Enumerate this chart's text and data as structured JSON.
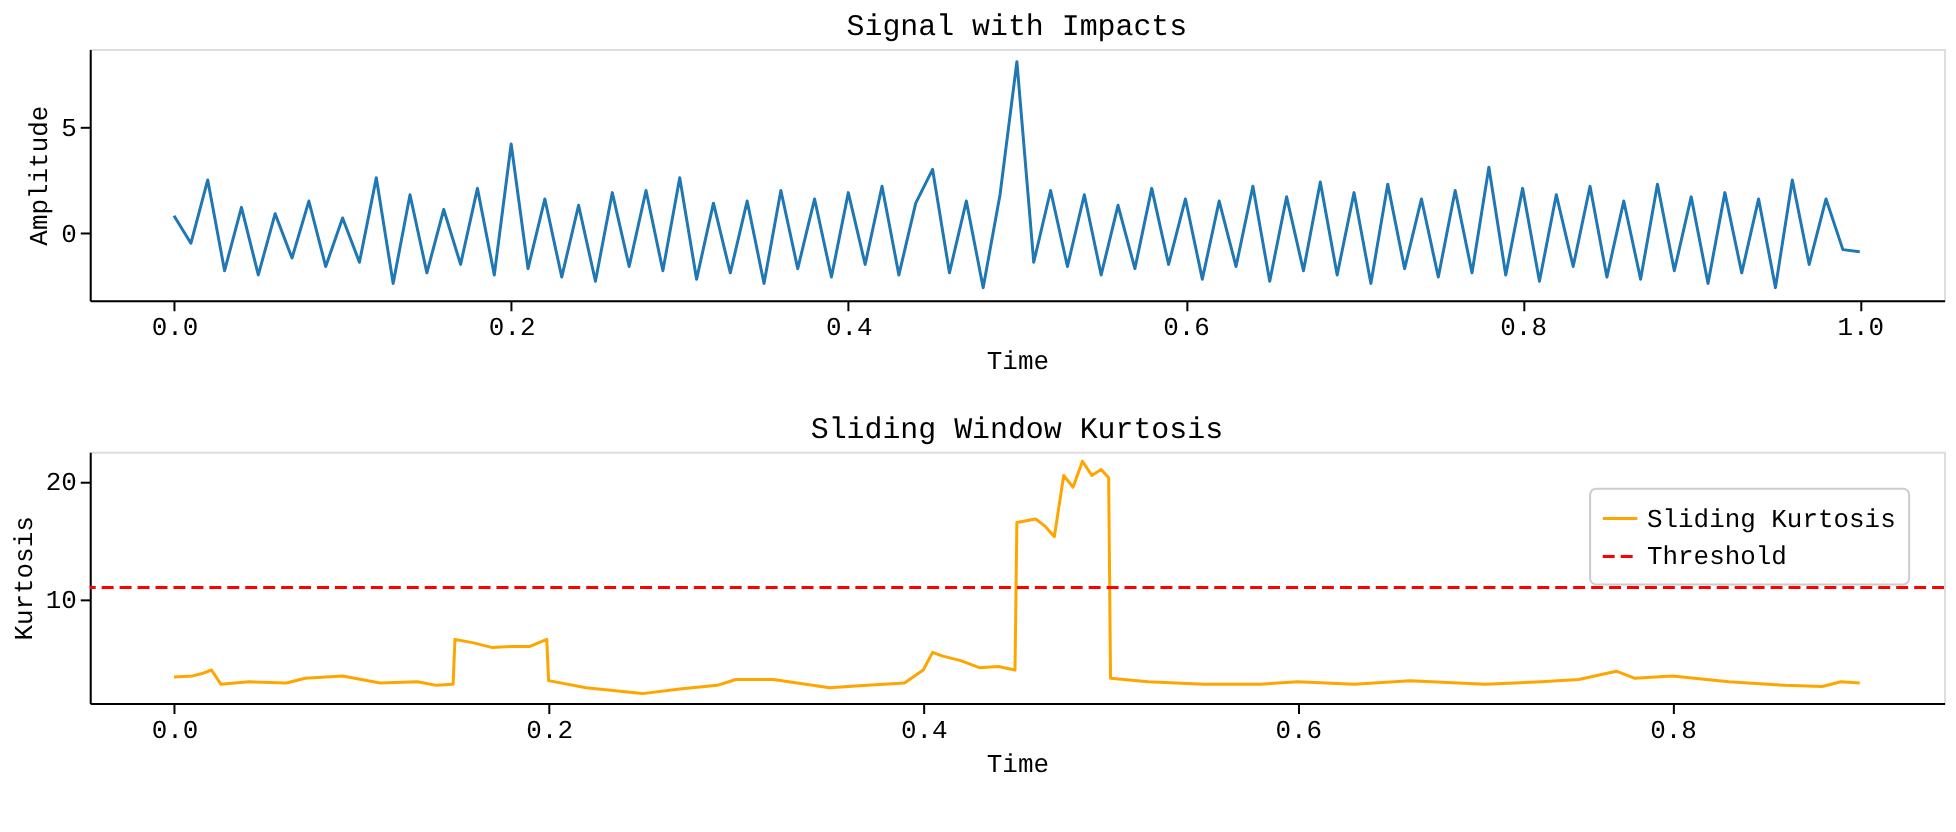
{
  "chart_data": [
    {
      "type": "line",
      "title": "Signal with Impacts",
      "xlabel": "Time",
      "ylabel": "Amplitude",
      "xlim": [
        -0.05,
        1.05
      ],
      "ylim": [
        -3.2,
        8.7
      ],
      "xticks": [
        {
          "value": 0,
          "label": "0.0"
        },
        {
          "value": 0.2,
          "label": "0.2"
        },
        {
          "value": 0.4,
          "label": "0.4"
        },
        {
          "value": 0.6,
          "label": "0.6"
        },
        {
          "value": 0.8,
          "label": "0.8"
        },
        {
          "value": 1,
          "label": "1.0"
        }
      ],
      "yticks": [
        0,
        5
      ],
      "grid": false,
      "legend": false,
      "x": [
        0.0,
        0.01,
        0.02,
        0.03,
        0.04,
        0.05,
        0.06,
        0.07,
        0.08,
        0.09,
        0.1,
        0.11,
        0.12,
        0.13,
        0.14,
        0.15,
        0.16,
        0.17,
        0.18,
        0.19,
        0.2,
        0.21,
        0.22,
        0.23,
        0.24,
        0.25,
        0.26,
        0.27,
        0.28,
        0.29,
        0.3,
        0.31,
        0.32,
        0.33,
        0.34,
        0.35,
        0.36,
        0.37,
        0.38,
        0.39,
        0.4,
        0.41,
        0.42,
        0.43,
        0.44,
        0.45,
        0.46,
        0.47,
        0.48,
        0.49,
        0.5,
        0.51,
        0.52,
        0.53,
        0.54,
        0.55,
        0.56,
        0.57,
        0.58,
        0.59,
        0.6,
        0.61,
        0.62,
        0.63,
        0.64,
        0.65,
        0.66,
        0.67,
        0.68,
        0.69,
        0.7,
        0.71,
        0.72,
        0.73,
        0.74,
        0.75,
        0.76,
        0.77,
        0.78,
        0.79,
        0.8,
        0.81,
        0.82,
        0.83,
        0.84,
        0.85,
        0.86,
        0.87,
        0.88,
        0.89,
        0.9,
        0.91,
        0.92,
        0.93,
        0.94,
        0.95,
        0.96,
        0.97,
        0.98,
        0.99,
        1.0
      ],
      "series": [
        {
          "color": "#1f77b4",
          "values": [
            0.8,
            -0.5,
            2.5,
            -1.8,
            1.2,
            -2.0,
            0.9,
            -1.2,
            1.5,
            -1.6,
            0.7,
            -1.4,
            2.6,
            -2.4,
            1.8,
            -1.9,
            1.1,
            -1.5,
            2.1,
            -2.0,
            4.2,
            -1.7,
            1.6,
            -2.1,
            1.3,
            -2.3,
            1.9,
            -1.6,
            2.0,
            -1.8,
            2.6,
            -2.2,
            1.4,
            -1.9,
            1.5,
            -2.4,
            2.0,
            -1.7,
            1.6,
            -2.1,
            1.9,
            -1.5,
            2.2,
            -2.0,
            1.4,
            3.0,
            -1.9,
            1.5,
            -2.6,
            1.8,
            8.1,
            -1.4,
            2.0,
            -1.6,
            1.8,
            -2.0,
            1.3,
            -1.7,
            2.1,
            -1.5,
            1.6,
            -2.2,
            1.5,
            -1.6,
            2.2,
            -2.3,
            1.7,
            -1.8,
            2.4,
            -2.0,
            1.9,
            -2.4,
            2.3,
            -1.7,
            1.6,
            -2.1,
            2.0,
            -1.9,
            3.1,
            -2.0,
            2.1,
            -2.3,
            1.8,
            -1.6,
            2.2,
            -2.1,
            1.5,
            -2.2,
            2.3,
            -1.8,
            1.7,
            -2.4,
            1.9,
            -1.9,
            1.6,
            -2.6,
            2.5,
            -1.5,
            1.6,
            -0.8,
            -0.9
          ]
        }
      ]
    },
    {
      "type": "line",
      "title": "Sliding Window Kurtosis",
      "xlabel": "Time",
      "ylabel": "Kurtosis",
      "xlim": [
        -0.045,
        0.945
      ],
      "ylim": [
        1.2,
        22.5
      ],
      "xticks": [
        {
          "value": 0,
          "label": "0.0"
        },
        {
          "value": 0.2,
          "label": "0.2"
        },
        {
          "value": 0.4,
          "label": "0.4"
        },
        {
          "value": 0.6,
          "label": "0.6"
        },
        {
          "value": 0.8,
          "label": "0.8"
        }
      ],
      "yticks": [
        10,
        20
      ],
      "grid": false,
      "legend": "top right",
      "x": [
        0,
        0.01,
        0.015,
        0.02,
        0.025,
        0.04,
        0.06,
        0.07,
        0.09,
        0.11,
        0.13,
        0.14,
        0.149,
        0.15,
        0.16,
        0.17,
        0.18,
        0.19,
        0.199,
        0.2,
        0.22,
        0.25,
        0.27,
        0.29,
        0.3,
        0.32,
        0.35,
        0.37,
        0.39,
        0.4,
        0.405,
        0.41,
        0.42,
        0.43,
        0.44,
        0.449,
        0.45,
        0.46,
        0.465,
        0.47,
        0.475,
        0.48,
        0.485,
        0.49,
        0.495,
        0.499,
        0.5,
        0.52,
        0.55,
        0.58,
        0.6,
        0.63,
        0.66,
        0.7,
        0.73,
        0.75,
        0.77,
        0.78,
        0.8,
        0.83,
        0.86,
        0.88,
        0.89,
        0.9
      ],
      "series": [
        {
          "name": "Sliding Kurtosis",
          "color": "#ffa500",
          "values": [
            3.4,
            3.5,
            3.7,
            4.0,
            2.8,
            3.0,
            2.9,
            3.3,
            3.5,
            2.9,
            3.0,
            2.7,
            2.8,
            6.6,
            6.3,
            5.9,
            6.0,
            6.0,
            6.6,
            3.1,
            2.5,
            2.0,
            2.4,
            2.7,
            3.2,
            3.2,
            2.5,
            2.7,
            2.9,
            4.0,
            5.5,
            5.2,
            4.8,
            4.2,
            4.3,
            4.0,
            16.5,
            16.8,
            16.2,
            15.3,
            20.5,
            19.5,
            21.7,
            20.5,
            21.0,
            20.3,
            3.3,
            3.0,
            2.8,
            2.8,
            3.0,
            2.8,
            3.1,
            2.8,
            3.0,
            3.2,
            3.9,
            3.3,
            3.5,
            3.0,
            2.7,
            2.6,
            3.0,
            2.9
          ]
        }
      ],
      "ref_lines": [
        {
          "axis": "y",
          "value": 11,
          "label": "Threshold",
          "color": "#ff0000",
          "line_style": "dashed"
        }
      ]
    }
  ]
}
